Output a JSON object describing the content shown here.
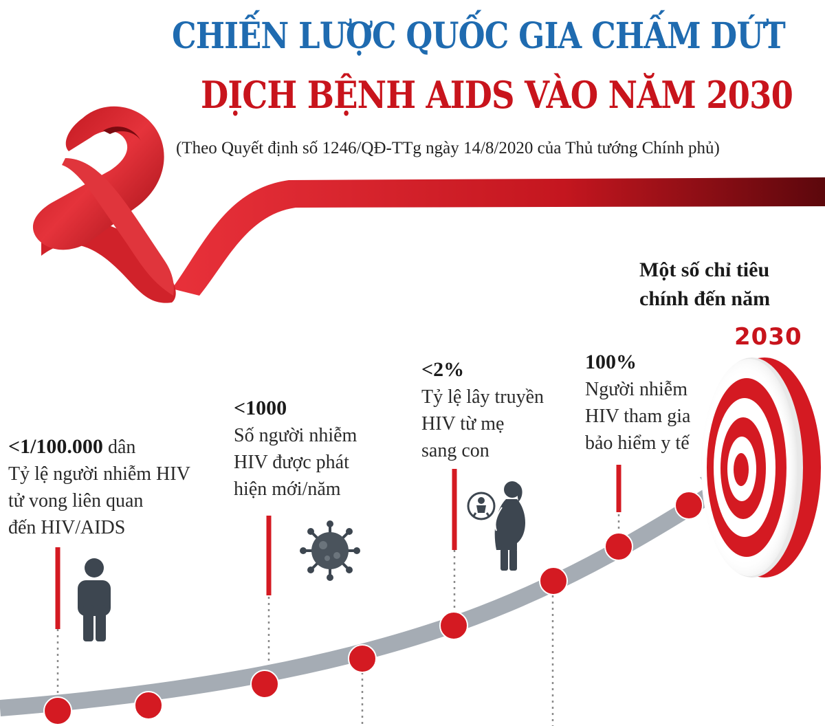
{
  "header": {
    "title_line1": "CHIẾN LƯỢC QUỐC GIA CHẤM DỨT",
    "title_line2": "DỊCH BỆNH AIDS VÀO NĂM 2030",
    "subtitle": "(Theo Quyết định số 1246/QĐ-TTg ngày 14/8/2020 của Thủ tướng Chính phủ)"
  },
  "goal": {
    "heading_line1": "Một số chỉ tiêu",
    "heading_line2": "chính đến năm",
    "year": "2030"
  },
  "targets": [
    {
      "value": "<1/100.000",
      "unit": " dân",
      "lines": [
        "Tỷ lệ người nhiễm HIV",
        "tử vong liên quan",
        "đến HIV/AIDS"
      ],
      "icon": "person-icon"
    },
    {
      "value": "<1000",
      "unit": "",
      "lines": [
        "Số người nhiễm",
        "HIV được phát",
        "hiện mới/năm"
      ],
      "icon": "virus-icon"
    },
    {
      "value": "<2%",
      "unit": "",
      "lines": [
        "Tỷ lệ lây truyền",
        "HIV từ mẹ",
        "sang con"
      ],
      "icon": "pregnant-woman-icon"
    },
    {
      "value": "100%",
      "unit": "",
      "lines": [
        "Người nhiễm",
        "HIV tham gia",
        "bảo hiểm y tế"
      ],
      "icon": ""
    }
  ],
  "colors": {
    "title_blue": "#1f6bb0",
    "accent_red": "#c8141c",
    "arrow_grey": "#a5acb4",
    "icon_dark": "#3d4650"
  },
  "decor": {
    "ribbon": "red-awareness-ribbon",
    "target": "dartboard-target-icon"
  }
}
